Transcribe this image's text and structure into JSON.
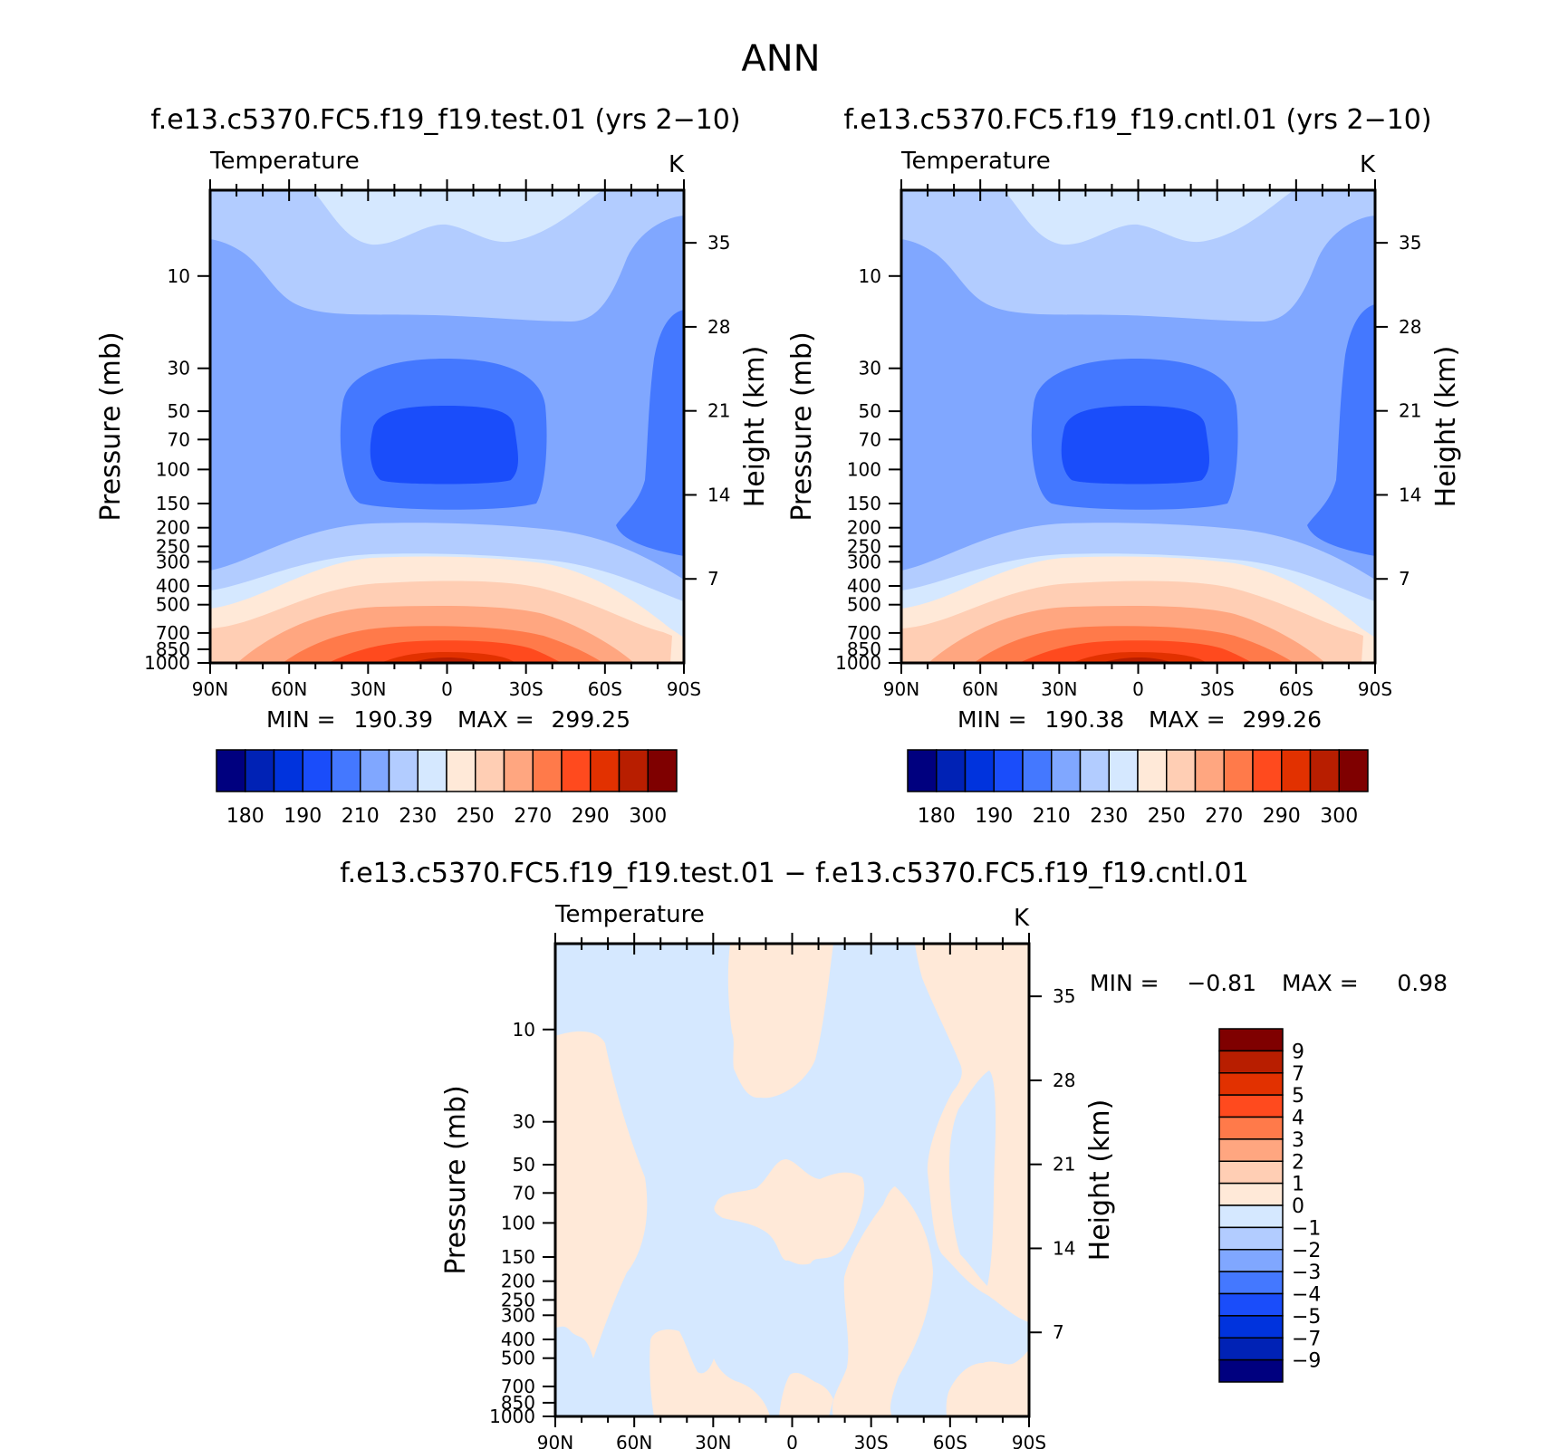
{
  "page_title": "ANN",
  "colors": {
    "cb_main": [
      "#00007F",
      "#0022B5",
      "#0033DD",
      "#1A4DFA",
      "#4478FF",
      "#80A7FF",
      "#B2CCFF",
      "#D5E8FF",
      "#FFE9D8",
      "#FFCEB4",
      "#FFA680",
      "#FF7A4A",
      "#FF4A1E",
      "#E23100",
      "#B81E00",
      "#7F0000"
    ],
    "cb_diff": [
      "#7F0000",
      "#B81E00",
      "#E23100",
      "#FF4A1E",
      "#FF7A4A",
      "#FFA680",
      "#FFCEB4",
      "#FFE9D8",
      "#D5E8FF",
      "#B2CCFF",
      "#80A7FF",
      "#4478FF",
      "#1A4DFA",
      "#0033DD",
      "#0022B5",
      "#00007F"
    ]
  },
  "chart_data": [
    {
      "type": "heatmap",
      "id": "test",
      "title": "f.e13.c5370.FC5.f19_f19.test.01 (yrs 2−10)",
      "left_string": "Temperature",
      "right_string": "K",
      "ylabel": "Pressure (mb)",
      "y2label": "Height (km)",
      "x_ticks": [
        "90N",
        "60N",
        "30N",
        "0",
        "30S",
        "60S",
        "90S"
      ],
      "x_values": [
        90,
        60,
        30,
        0,
        -30,
        -60,
        -90
      ],
      "y_ticks": [
        "10",
        "30",
        "50",
        "70",
        "100",
        "150",
        "200",
        "250",
        "300",
        "400",
        "500",
        "700",
        "850",
        "1000"
      ],
      "y_values": [
        10,
        30,
        50,
        70,
        100,
        150,
        200,
        250,
        300,
        400,
        500,
        700,
        850,
        1000
      ],
      "y2_ticks": [
        "35",
        "28",
        "21",
        "14",
        "7"
      ],
      "y2_values": [
        35,
        28,
        21,
        14,
        7
      ],
      "ylim_mb": [
        3.6,
        1000
      ],
      "y_scale": "log",
      "min_label": "MIN =",
      "min": "190.39",
      "max_label": "MAX =",
      "max": "299.25",
      "colorbar": {
        "orientation": "horizontal",
        "labels": [
          "180",
          "190",
          "210",
          "230",
          "250",
          "270",
          "290",
          "300"
        ]
      }
    },
    {
      "type": "heatmap",
      "id": "cntl",
      "title": "f.e13.c5370.FC5.f19_f19.cntl.01 (yrs 2−10)",
      "left_string": "Temperature",
      "right_string": "K",
      "ylabel": "Pressure (mb)",
      "y2label": "Height (km)",
      "x_ticks": [
        "90N",
        "60N",
        "30N",
        "0",
        "30S",
        "60S",
        "90S"
      ],
      "x_values": [
        90,
        60,
        30,
        0,
        -30,
        -60,
        -90
      ],
      "y_ticks": [
        "10",
        "30",
        "50",
        "70",
        "100",
        "150",
        "200",
        "250",
        "300",
        "400",
        "500",
        "700",
        "850",
        "1000"
      ],
      "y_values": [
        10,
        30,
        50,
        70,
        100,
        150,
        200,
        250,
        300,
        400,
        500,
        700,
        850,
        1000
      ],
      "y2_ticks": [
        "35",
        "28",
        "21",
        "14",
        "7"
      ],
      "y2_values": [
        35,
        28,
        21,
        14,
        7
      ],
      "ylim_mb": [
        3.6,
        1000
      ],
      "y_scale": "log",
      "min_label": "MIN =",
      "min": "190.38",
      "max_label": "MAX =",
      "max": "299.26",
      "colorbar": {
        "orientation": "horizontal",
        "labels": [
          "180",
          "190",
          "210",
          "230",
          "250",
          "270",
          "290",
          "300"
        ]
      }
    },
    {
      "type": "heatmap",
      "id": "diff",
      "title": "f.e13.c5370.FC5.f19_f19.test.01 − f.e13.c5370.FC5.f19_f19.cntl.01",
      "left_string": "Temperature",
      "right_string": "K",
      "ylabel": "Pressure (mb)",
      "y2label": "Height (km)",
      "x_ticks": [
        "90N",
        "60N",
        "30N",
        "0",
        "30S",
        "60S",
        "90S"
      ],
      "x_values": [
        90,
        60,
        30,
        0,
        -30,
        -60,
        -90
      ],
      "y_ticks": [
        "10",
        "30",
        "50",
        "70",
        "100",
        "150",
        "200",
        "250",
        "300",
        "400",
        "500",
        "700",
        "850",
        "1000"
      ],
      "y_values": [
        10,
        30,
        50,
        70,
        100,
        150,
        200,
        250,
        300,
        400,
        500,
        700,
        850,
        1000
      ],
      "y2_ticks": [
        "35",
        "28",
        "21",
        "14",
        "7"
      ],
      "y2_values": [
        35,
        28,
        21,
        14,
        7
      ],
      "ylim_mb": [
        3.6,
        1000
      ],
      "y_scale": "log",
      "min_label": "MIN =",
      "min": "−0.81",
      "max_label": "MAX =",
      "max": "0.98",
      "colorbar": {
        "orientation": "vertical",
        "labels": [
          "9",
          "7",
          "5",
          "4",
          "3",
          "2",
          "1",
          "0",
          "−1",
          "−2",
          "−3",
          "−4",
          "−5",
          "−7",
          "−9"
        ]
      }
    }
  ]
}
